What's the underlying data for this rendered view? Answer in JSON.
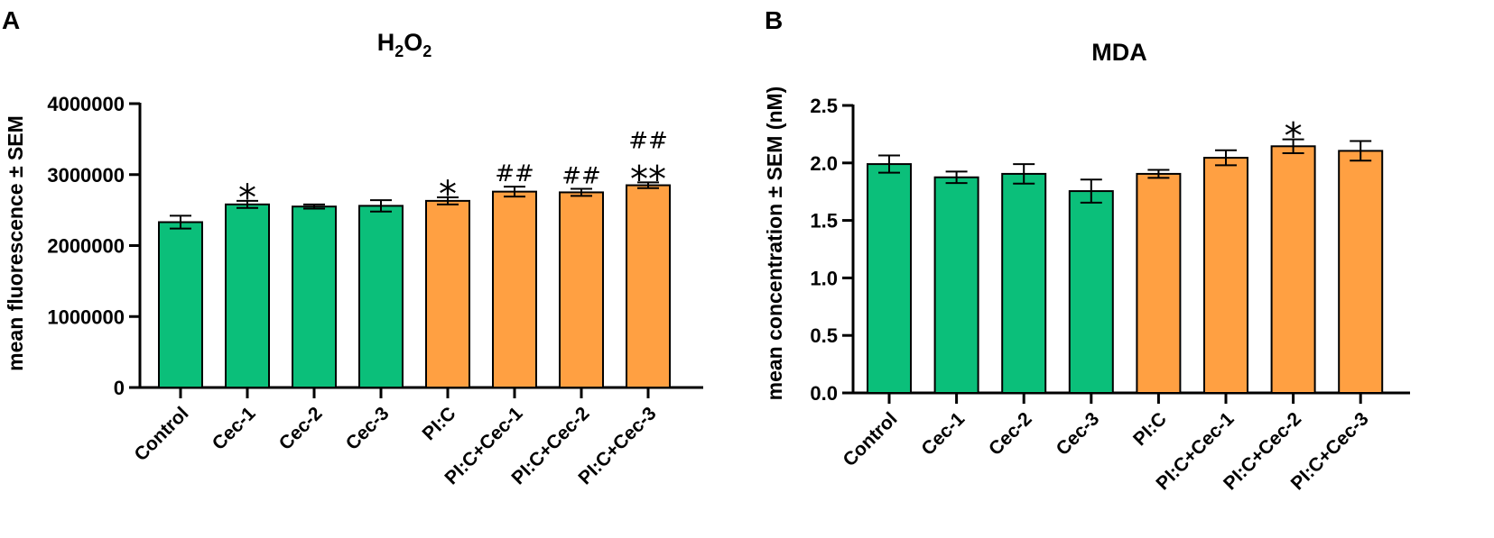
{
  "chart_data": [
    {
      "type": "bar",
      "panel": "A",
      "title": "H2O2",
      "title_parts": [
        "H",
        "2",
        "O",
        "2"
      ],
      "ylabel": "mean fluorescence ± SEM",
      "ylim": [
        0,
        4000000
      ],
      "yticks": [
        "0",
        "1000000",
        "2000000",
        "3000000",
        "4000000"
      ],
      "categories": [
        "Control",
        "Cec-1",
        "Cec-2",
        "Cec-3",
        "PI:C",
        "PI:C+Cec-1",
        "PI:C+Cec-2",
        "PI:C+Cec-3"
      ],
      "values": [
        2330000,
        2580000,
        2550000,
        2560000,
        2630000,
        2760000,
        2750000,
        2850000
      ],
      "errors": [
        90000,
        50000,
        30000,
        80000,
        50000,
        70000,
        50000,
        40000
      ],
      "colors": [
        "#0bbf7a",
        "#0bbf7a",
        "#0bbf7a",
        "#0bbf7a",
        "#ffa042",
        "#ffa042",
        "#ffa042",
        "#ffa042"
      ],
      "annotations": [
        "",
        "*",
        "",
        "",
        "*",
        "##",
        "##",
        "**|##"
      ]
    },
    {
      "type": "bar",
      "panel": "B",
      "title": "MDA",
      "ylabel": "mean concentration ± SEM (nM)",
      "ylim": [
        0,
        2.5
      ],
      "yticks": [
        "0.0",
        "0.5",
        "1.0",
        "1.5",
        "2.0",
        "2.5"
      ],
      "categories": [
        "Control",
        "Cec-1",
        "Cec-2",
        "Cec-3",
        "PI:C",
        "PI:C+Cec-1",
        "PI:C+Cec-2",
        "PI:C+Cec-3"
      ],
      "values": [
        1.99,
        1.875,
        1.905,
        1.755,
        1.905,
        2.045,
        2.145,
        2.105
      ],
      "errors": [
        0.075,
        0.05,
        0.085,
        0.1,
        0.035,
        0.065,
        0.06,
        0.085
      ],
      "colors": [
        "#0bbf7a",
        "#0bbf7a",
        "#0bbf7a",
        "#0bbf7a",
        "#ffa042",
        "#ffa042",
        "#ffa042",
        "#ffa042"
      ],
      "annotations": [
        "",
        "",
        "",
        "",
        "",
        "",
        "*",
        ""
      ]
    }
  ]
}
